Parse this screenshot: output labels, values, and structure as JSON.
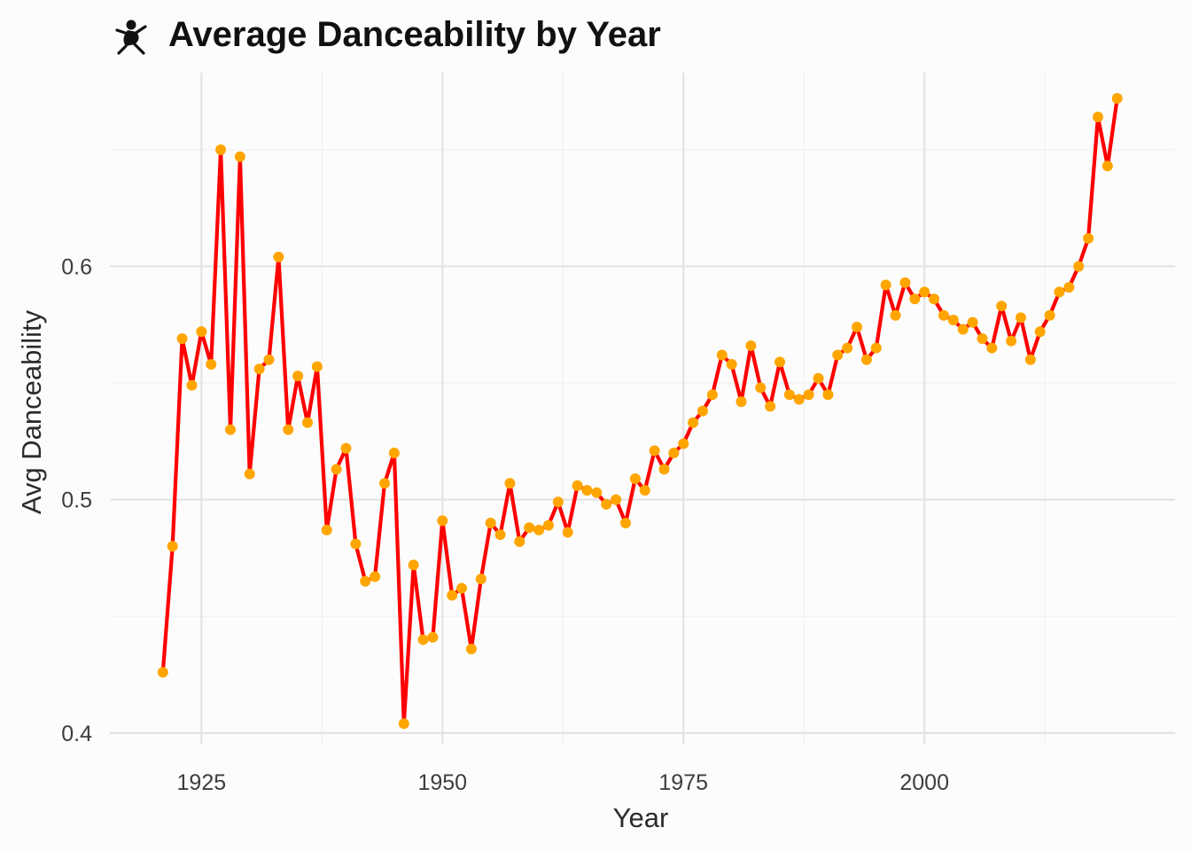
{
  "chart_data": {
    "type": "line",
    "title": "Average Danceability by Year",
    "title_icon": "dancer-emoji",
    "xlabel": "Year",
    "ylabel": "Avg Danceability",
    "xlim": [
      1915.5,
      2026
    ],
    "ylim": [
      0.395,
      0.683
    ],
    "x_ticks": [
      1925,
      1950,
      1975,
      2000
    ],
    "x_tick_labels": [
      "1925",
      "1950",
      "1975",
      "2000"
    ],
    "y_ticks": [
      0.4,
      0.5,
      0.6
    ],
    "y_tick_labels": [
      "0.4",
      "0.5",
      "0.6"
    ],
    "grid": true,
    "legend": "none",
    "line_color": "#ff0000",
    "point_color": "#ffa500",
    "series": [
      {
        "x": [
          1921,
          1922,
          1923,
          1924,
          1925,
          1926,
          1927,
          1928,
          1929,
          1930,
          1931,
          1932,
          1933,
          1934,
          1935,
          1936,
          1937,
          1938,
          1939,
          1940,
          1941,
          1942,
          1943,
          1944,
          1945,
          1946,
          1947,
          1948,
          1949,
          1950,
          1951,
          1952,
          1953,
          1954,
          1955,
          1956,
          1957,
          1958,
          1959,
          1960,
          1961,
          1962,
          1963,
          1964,
          1965,
          1966,
          1967,
          1968,
          1969,
          1970,
          1971,
          1972,
          1973,
          1974,
          1975,
          1976,
          1977,
          1978,
          1979,
          1980,
          1981,
          1982,
          1983,
          1984,
          1985,
          1986,
          1987,
          1988,
          1989,
          1990,
          1991,
          1992,
          1993,
          1994,
          1995,
          1996,
          1997,
          1998,
          1999,
          2000,
          2001,
          2002,
          2003,
          2004,
          2005,
          2006,
          2007,
          2008,
          2009,
          2010,
          2011,
          2012,
          2013,
          2014,
          2015,
          2016,
          2017,
          2018,
          2019,
          2020
        ],
        "values": [
          0.426,
          0.48,
          0.569,
          0.549,
          0.572,
          0.558,
          0.65,
          0.53,
          0.647,
          0.511,
          0.556,
          0.56,
          0.604,
          0.53,
          0.553,
          0.533,
          0.557,
          0.487,
          0.513,
          0.522,
          0.481,
          0.465,
          0.467,
          0.507,
          0.52,
          0.404,
          0.472,
          0.44,
          0.441,
          0.491,
          0.459,
          0.462,
          0.436,
          0.466,
          0.49,
          0.485,
          0.507,
          0.482,
          0.488,
          0.487,
          0.489,
          0.499,
          0.486,
          0.506,
          0.504,
          0.503,
          0.498,
          0.5,
          0.49,
          0.509,
          0.504,
          0.521,
          0.513,
          0.52,
          0.524,
          0.533,
          0.538,
          0.545,
          0.562,
          0.558,
          0.542,
          0.566,
          0.548,
          0.54,
          0.559,
          0.545,
          0.543,
          0.545,
          0.552,
          0.545,
          0.562,
          0.565,
          0.574,
          0.56,
          0.565,
          0.592,
          0.579,
          0.593,
          0.586,
          0.589,
          0.586,
          0.579,
          0.577,
          0.573,
          0.576,
          0.569,
          0.565,
          0.583,
          0.568,
          0.578,
          0.56,
          0.572,
          0.579,
          0.589,
          0.591,
          0.6,
          0.612,
          0.664,
          0.643,
          0.672
        ]
      }
    ]
  }
}
